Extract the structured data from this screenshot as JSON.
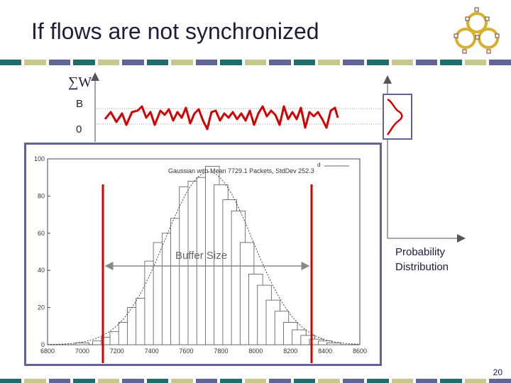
{
  "slide": {
    "title": "If flows are not synchronized",
    "page_number": "20",
    "sum_symbol": "∑W",
    "label_b": "B",
    "label_0": "0",
    "buffer_size_label": "Buffer Size",
    "probability_label": "Probability Distribution",
    "legend_text": "Gaussian with Mean 7729.1 Packets, StdDev 252.3",
    "legend_mark": "d",
    "colors": {
      "title": "#1e1e3c",
      "band_teal": "#1e6e6e",
      "band_yellow": "#c8c88c",
      "band_purple": "#606496",
      "red_line": "#d20000",
      "frame": "#606496"
    }
  },
  "chart_data": {
    "type": "bar",
    "title": "",
    "xlabel": "",
    "ylabel": "",
    "xlim": [
      6800,
      8600
    ],
    "ylim": [
      0,
      100
    ],
    "x_ticks": [
      "6800",
      "7000",
      "7200",
      "7400",
      "7600",
      "7800",
      "8000",
      "8200",
      "8400",
      "8600"
    ],
    "y_ticks": [
      "0",
      "20",
      "40",
      "60",
      "80",
      "100"
    ],
    "gaussian": {
      "mean": 7729.1,
      "stddev": 252.3,
      "peak": 93
    },
    "series": [
      {
        "name": "",
        "x": [
          7000,
          7100,
          7150,
          7200,
          7250,
          7300,
          7350,
          7400,
          7450,
          7500,
          7550,
          7600,
          7650,
          7700,
          7750,
          7800,
          7850,
          7900,
          7950,
          8000,
          8050,
          8100,
          8150,
          8200,
          8250,
          8300,
          8350,
          8400,
          8450
        ],
        "values": [
          1,
          2,
          4,
          7,
          12,
          20,
          25,
          45,
          55,
          60,
          68,
          85,
          88,
          90,
          96,
          86,
          78,
          72,
          55,
          38,
          32,
          24,
          18,
          12,
          8,
          5,
          3,
          2,
          1
        ]
      }
    ]
  }
}
